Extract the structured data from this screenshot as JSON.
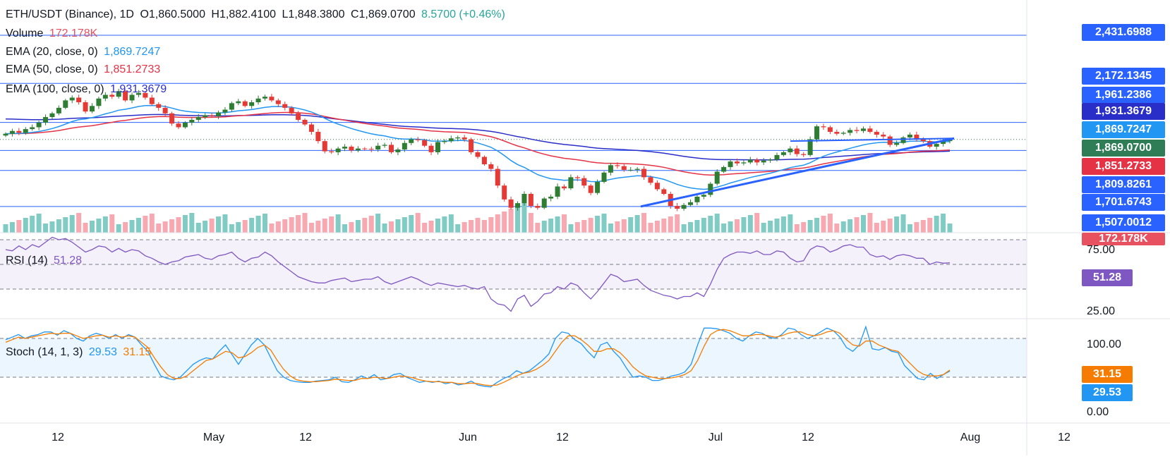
{
  "header": {
    "symbol": "ETH/USDT (Binance), 1D",
    "open": "O1,860.5000",
    "high": "H1,882.4100",
    "low": "L1,848.3800",
    "close": "C1,869.0700",
    "change": "8.5700 (+0.46%)"
  },
  "legend": {
    "volume_label": "Volume",
    "volume_value": "172.178K",
    "ema20_label": "EMA (20, close, 0)",
    "ema20_value": "1,869.7247",
    "ema50_label": "EMA (50, close, 0)",
    "ema50_value": "1,851.2733",
    "ema100_label": "EMA (100, close, 0)",
    "ema100_value": "1,931.3679",
    "rsi_label": "RSI (14)",
    "rsi_value": "51.28",
    "stoch_label": "Stoch (14, 1, 3)",
    "stoch_k_value": "29.53",
    "stoch_d_value": "31.15"
  },
  "price_tags": [
    {
      "text": "2,431.6988",
      "color": "#2962ff",
      "value": 2431.6988
    },
    {
      "text": "2,172.1345",
      "color": "#2962ff",
      "value": 2172.1345
    },
    {
      "text": "1,961.2386",
      "color": "#2962ff",
      "value": 1961.2386
    },
    {
      "text": "1,931.3679",
      "color": "#2a2ec9",
      "value": 1931.3679
    },
    {
      "text": "1,869.7247",
      "color": "#2196f3",
      "value": 1869.7247
    },
    {
      "text": "1,869.0700",
      "color": "#2e7d57",
      "value": 1869.07
    },
    {
      "text": "1,851.2733",
      "color": "#e53245",
      "value": 1851.2733
    },
    {
      "text": "1,809.8261",
      "color": "#2962ff",
      "value": 1809.8261
    },
    {
      "text": "1,701.6743",
      "color": "#2962ff",
      "value": 1701.6743
    },
    {
      "text": "1,507.0012",
      "color": "#2962ff",
      "value": 1507.0012
    },
    {
      "text": "172.178K",
      "color": "#e8515f",
      "value": 172.178
    }
  ],
  "rsi_axis": [
    "75.00",
    "25.00"
  ],
  "rsi_tag": {
    "text": "51.28",
    "color": "#7e57c2"
  },
  "stoch_axis": [
    "100.00",
    "0.00"
  ],
  "stoch_tags": [
    {
      "text": "31.15",
      "color": "#f57c00"
    },
    {
      "text": "29.53",
      "color": "#2196f3"
    }
  ],
  "x_axis": [
    "12",
    "May",
    "12",
    "Jun",
    "12",
    "Jul",
    "12",
    "Aug",
    "12"
  ],
  "colors": {
    "up": "#26a69a",
    "up_candle": "#2e7d32",
    "down": "#e53935",
    "vol_up": "#80cbc4",
    "vol_down": "#f7a8b0",
    "ema20": "#2196f3",
    "ema50": "#e53245",
    "ema100": "#2a2ec9",
    "trendline": "#2962ff",
    "rsi": "#7e57c2",
    "stoch_k": "#2196f3",
    "stoch_d": "#f57c00"
  },
  "chart_data": [
    {
      "type": "candlestick",
      "title": "ETH/USDT (Binance), 1D",
      "ylim": [
        1460,
        2470
      ],
      "horizontal_levels": [
        2431.6988,
        2172.1345,
        1961.2386,
        1809.8261,
        1701.6743,
        1507.0012
      ],
      "trendline": {
        "from": {
          "date": "2023-06-26",
          "price": 1507
        },
        "to": {
          "date": "2023-08-06",
          "price": 1875
        }
      },
      "ohlc_close": [
        1900,
        1915,
        1905,
        1925,
        1935,
        1960,
        1990,
        2010,
        2040,
        2080,
        2095,
        2070,
        2020,
        2050,
        2090,
        2110,
        2100,
        2130,
        2080,
        2110,
        2120,
        2095,
        2060,
        2040,
        2010,
        1955,
        1935,
        1960,
        1975,
        1990,
        2000,
        1995,
        2015,
        2030,
        2065,
        2075,
        2050,
        2070,
        2090,
        2100,
        2080,
        2060,
        2040,
        2010,
        1975,
        1950,
        1910,
        1860,
        1805,
        1800,
        1820,
        1830,
        1810,
        1820,
        1818,
        1815,
        1835,
        1840,
        1800,
        1815,
        1850,
        1870,
        1865,
        1835,
        1800,
        1855,
        1860,
        1875,
        1880,
        1870,
        1800,
        1775,
        1735,
        1710,
        1620,
        1545,
        1500,
        1525,
        1575,
        1510,
        1500,
        1550,
        1560,
        1615,
        1605,
        1665,
        1660,
        1620,
        1580,
        1640,
        1690,
        1730,
        1725,
        1705,
        1705,
        1710,
        1665,
        1635,
        1600,
        1575,
        1510,
        1495,
        1515,
        1530,
        1560,
        1570,
        1630,
        1695,
        1720,
        1750,
        1740,
        1745,
        1760,
        1745,
        1755,
        1760,
        1785,
        1800,
        1820,
        1790,
        1785,
        1870,
        1940,
        1935,
        1910,
        1900,
        1905,
        1920,
        1915,
        1928,
        1910,
        1895,
        1885,
        1840,
        1850,
        1880,
        1895,
        1870,
        1860,
        1830,
        1845,
        1860,
        1869.07
      ],
      "ema20_last": 1869.7247,
      "ema50_last": 1851.2733,
      "ema100_last": 1931.3679
    },
    {
      "type": "bar",
      "title": "Volume",
      "last_value": "172.178K"
    },
    {
      "type": "line",
      "title": "RSI (14)",
      "ylim": [
        0,
        100
      ],
      "bands": [
        70,
        50,
        30
      ],
      "values": [
        62,
        61,
        65,
        62,
        66,
        64,
        68,
        72,
        70,
        71,
        68,
        64,
        60,
        62,
        65,
        64,
        60,
        63,
        60,
        62,
        61,
        57,
        55,
        52,
        50,
        52,
        53,
        56,
        57,
        58,
        55,
        54,
        57,
        58,
        60,
        55,
        52,
        55,
        56,
        60,
        57,
        52,
        48,
        44,
        40,
        38,
        36,
        35,
        35,
        37,
        38,
        39,
        36,
        37,
        38,
        38,
        40,
        36,
        34,
        36,
        38,
        40,
        38,
        35,
        33,
        35,
        34,
        33,
        32,
        33,
        31,
        30,
        32,
        22,
        18,
        17,
        12,
        22,
        25,
        16,
        20,
        26,
        27,
        32,
        30,
        35,
        33,
        27,
        22,
        28,
        35,
        42,
        40,
        36,
        37,
        38,
        33,
        29,
        27,
        25,
        24,
        22,
        24,
        24,
        27,
        24,
        34,
        46,
        55,
        58,
        60,
        60,
        59,
        61,
        58,
        58,
        61,
        60,
        55,
        52,
        53,
        62,
        65,
        64,
        60,
        62,
        65,
        66,
        64,
        64,
        58,
        56,
        57,
        54,
        57,
        58,
        57,
        55,
        55,
        50,
        52,
        51,
        51.28
      ]
    },
    {
      "type": "line",
      "title": "Stoch (14, 1, 3)",
      "ylim": [
        0,
        100
      ],
      "bands": [
        80,
        20
      ],
      "series": [
        {
          "name": "29.53",
          "values": [
            78,
            82,
            86,
            80,
            84,
            86,
            90,
            90,
            85,
            92,
            88,
            80,
            76,
            84,
            88,
            85,
            80,
            86,
            80,
            86,
            82,
            70,
            60,
            40,
            22,
            18,
            16,
            20,
            30,
            40,
            46,
            50,
            48,
            60,
            70,
            55,
            40,
            55,
            70,
            80,
            70,
            50,
            30,
            20,
            15,
            13,
            12,
            12,
            14,
            15,
            16,
            20,
            13,
            12,
            16,
            22,
            18,
            24,
            16,
            18,
            24,
            26,
            20,
            16,
            12,
            14,
            12,
            14,
            10,
            12,
            8,
            10,
            14,
            8,
            6,
            5,
            12,
            18,
            22,
            30,
            26,
            30,
            38,
            46,
            56,
            80,
            90,
            88,
            78,
            72,
            60,
            50,
            70,
            74,
            60,
            50,
            34,
            20,
            22,
            20,
            15,
            15,
            18,
            22,
            24,
            28,
            40,
            70,
            96,
            96,
            95,
            92,
            88,
            80,
            76,
            84,
            90,
            88,
            82,
            80,
            86,
            96,
            94,
            86,
            80,
            84,
            90,
            96,
            92,
            82,
            66,
            60,
            70,
            98,
            64,
            62,
            66,
            60,
            58,
            38,
            28,
            18,
            16,
            26,
            18,
            24,
            29.53
          ]
        },
        {
          "name": "31.15",
          "values": [
            74,
            78,
            82,
            80,
            82,
            84,
            86,
            88,
            87,
            88,
            88,
            84,
            80,
            82,
            84,
            85,
            82,
            84,
            82,
            84,
            82,
            74,
            66,
            50,
            36,
            24,
            18,
            18,
            22,
            30,
            38,
            46,
            48,
            54,
            60,
            58,
            50,
            52,
            58,
            66,
            70,
            62,
            46,
            32,
            22,
            16,
            14,
            13,
            13,
            14,
            15,
            17,
            16,
            15,
            15,
            18,
            18,
            20,
            19,
            18,
            20,
            22,
            21,
            19,
            16,
            14,
            13,
            13,
            12,
            12,
            10,
            10,
            11,
            10,
            8,
            7,
            8,
            12,
            17,
            22,
            26,
            28,
            32,
            38,
            46,
            60,
            74,
            84,
            84,
            78,
            70,
            60,
            60,
            64,
            64,
            58,
            48,
            36,
            28,
            22,
            20,
            18,
            18,
            19,
            21,
            24,
            30,
            46,
            68,
            86,
            92,
            94,
            92,
            88,
            84,
            84,
            86,
            86,
            84,
            82,
            84,
            88,
            90,
            90,
            86,
            84,
            86,
            90,
            92,
            88,
            78,
            70,
            68,
            76,
            76,
            70,
            66,
            62,
            60,
            50,
            40,
            30,
            24,
            22,
            22,
            24,
            31.15
          ]
        }
      ]
    }
  ]
}
